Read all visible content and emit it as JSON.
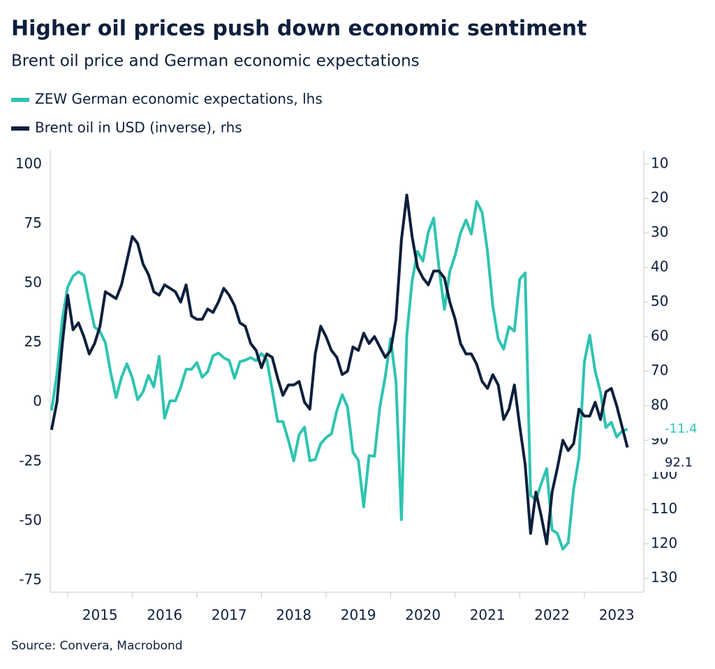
{
  "chart_data": {
    "type": "line",
    "title": "Higher oil prices push down economic sentiment",
    "subtitle": "Brent oil price and German economic expectations",
    "source": "Source: Convera, Macrobond",
    "x": [
      2014.75,
      2014.833,
      2014.917,
      2015,
      2015.083,
      2015.167,
      2015.25,
      2015.333,
      2015.417,
      2015.5,
      2015.583,
      2015.667,
      2015.75,
      2015.833,
      2015.917,
      2016,
      2016.083,
      2016.167,
      2016.25,
      2016.333,
      2016.417,
      2016.5,
      2016.583,
      2016.667,
      2016.75,
      2016.833,
      2016.917,
      2017,
      2017.083,
      2017.167,
      2017.25,
      2017.333,
      2017.417,
      2017.5,
      2017.583,
      2017.667,
      2017.75,
      2017.833,
      2017.917,
      2018,
      2018.083,
      2018.167,
      2018.25,
      2018.333,
      2018.417,
      2018.5,
      2018.583,
      2018.667,
      2018.75,
      2018.833,
      2018.917,
      2019,
      2019.083,
      2019.167,
      2019.25,
      2019.333,
      2019.417,
      2019.5,
      2019.583,
      2019.667,
      2019.75,
      2019.833,
      2019.917,
      2020,
      2020.083,
      2020.167,
      2020.25,
      2020.333,
      2020.417,
      2020.5,
      2020.583,
      2020.667,
      2020.75,
      2020.833,
      2020.917,
      2021,
      2021.083,
      2021.167,
      2021.25,
      2021.333,
      2021.417,
      2021.5,
      2021.583,
      2021.667,
      2021.75,
      2021.833,
      2021.917,
      2022,
      2022.083,
      2022.167,
      2022.25,
      2022.333,
      2022.417,
      2022.5,
      2022.583,
      2022.667,
      2022.75,
      2022.833,
      2022.917,
      2023,
      2023.083,
      2023.167,
      2023.25,
      2023.333,
      2023.417,
      2023.5,
      2023.583,
      2023.667
    ],
    "series": [
      {
        "name": "ZEW German economic expectations, lhs",
        "color": "#2ec4b0",
        "axis": "y",
        "values": [
          -3.6,
          11.5,
          34.9,
          48.4,
          53.0,
          54.8,
          53.3,
          41.9,
          31.5,
          29.7,
          25.0,
          12.1,
          1.9,
          10.4,
          16.1,
          10.2,
          1.0,
          4.3,
          11.2,
          6.4,
          19.2,
          -6.8,
          0.5,
          0.5,
          6.2,
          13.8,
          13.8,
          16.6,
          10.4,
          12.8,
          19.5,
          20.6,
          18.6,
          17.5,
          10.0,
          17.0,
          17.6,
          18.7,
          17.4,
          20.4,
          17.8,
          5.1,
          -8.2,
          -8.2,
          -16.1,
          -24.7,
          -13.7,
          -10.6,
          -24.7,
          -24.1,
          -17.5,
          -15.0,
          -13.4,
          -3.6,
          3.1,
          -2.1,
          -21.1,
          -24.5,
          -44.1,
          -22.5,
          -22.8,
          -2.1,
          10.7,
          26.7,
          8.7,
          -49.5,
          28.2,
          51.0,
          63.4,
          59.3,
          71.5,
          77.4,
          56.1,
          39.0,
          55.0,
          61.8,
          71.2,
          76.6,
          70.7,
          84.4,
          79.8,
          63.3,
          40.4,
          26.5,
          22.3,
          31.7,
          29.9,
          51.7,
          54.3,
          -39.3,
          -41.0,
          -34.3,
          -28.0,
          -53.8,
          -55.3,
          -61.9,
          -59.2,
          -36.7,
          -23.3,
          16.9,
          28.1,
          13.0,
          4.1,
          -10.7,
          -8.5,
          -14.7,
          -12.3,
          -11.4
        ]
      },
      {
        "name": "Brent oil in USD (inverse), rhs",
        "color": "#0d1f3c",
        "axis": "y2",
        "values": [
          87,
          79,
          62,
          48,
          58,
          56,
          60,
          65,
          62,
          57,
          47,
          48,
          49,
          45,
          38,
          31,
          33,
          39,
          42,
          47,
          48,
          45,
          46,
          47,
          50,
          45,
          54,
          55,
          55,
          52,
          53,
          50,
          46,
          48,
          51,
          56,
          57,
          62,
          64,
          69,
          65,
          66,
          72,
          77,
          74,
          74,
          73,
          79,
          81,
          65,
          57,
          60,
          64,
          66,
          71,
          70,
          63,
          64,
          59,
          62,
          60,
          63,
          66,
          64,
          55,
          32,
          19,
          31,
          40,
          43,
          45,
          41,
          41,
          43,
          50,
          55,
          62,
          65,
          65,
          68,
          73,
          75,
          71,
          74,
          84,
          81,
          74,
          86,
          97,
          117,
          105,
          112,
          120,
          105,
          98,
          90,
          93,
          91,
          81,
          83,
          83,
          79,
          84,
          76,
          75,
          80,
          86,
          92.1
        ]
      }
    ],
    "xlim": [
      2014.73,
      2023.92
    ],
    "xticks": [
      2015,
      2016,
      2017,
      2018,
      2019,
      2020,
      2021,
      2022,
      2023
    ],
    "ylim": [
      -80,
      106
    ],
    "yticks": [
      -75,
      -50,
      -25,
      0,
      25,
      50,
      75,
      100
    ],
    "y2lim": [
      134,
      6
    ],
    "y2ticks": [
      10,
      20,
      30,
      40,
      50,
      60,
      70,
      80,
      90,
      100,
      110,
      120,
      130
    ],
    "grid": false
  }
}
